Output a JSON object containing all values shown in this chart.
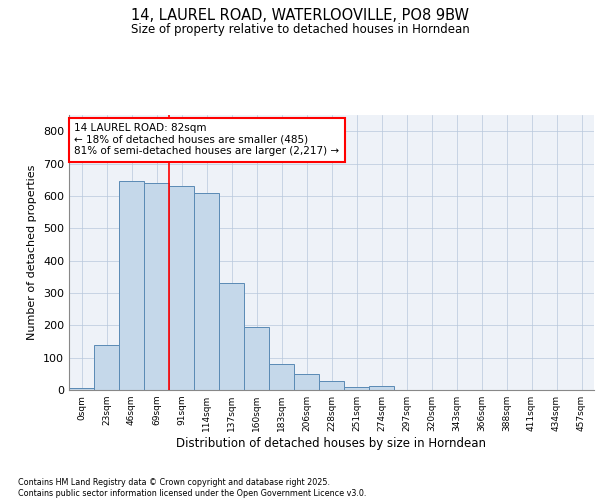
{
  "title": "14, LAUREL ROAD, WATERLOOVILLE, PO8 9BW",
  "subtitle": "Size of property relative to detached houses in Horndean",
  "xlabel": "Distribution of detached houses by size in Horndean",
  "ylabel": "Number of detached properties",
  "categories": [
    "0sqm",
    "23sqm",
    "46sqm",
    "69sqm",
    "91sqm",
    "114sqm",
    "137sqm",
    "160sqm",
    "183sqm",
    "206sqm",
    "228sqm",
    "251sqm",
    "274sqm",
    "297sqm",
    "320sqm",
    "343sqm",
    "366sqm",
    "388sqm",
    "411sqm",
    "434sqm",
    "457sqm"
  ],
  "bar_values": [
    5,
    140,
    645,
    640,
    630,
    610,
    330,
    195,
    80,
    48,
    28,
    10,
    12,
    0,
    0,
    0,
    0,
    0,
    0,
    0,
    0
  ],
  "vline_x": 3.5,
  "annotation_text": "14 LAUREL ROAD: 82sqm\n← 18% of detached houses are smaller (485)\n81% of semi-detached houses are larger (2,217) →",
  "bar_color": "#c5d8ea",
  "bar_edge_color": "#5a8ab5",
  "vline_color": "red",
  "background_color": "#eef2f8",
  "footer": "Contains HM Land Registry data © Crown copyright and database right 2025.\nContains public sector information licensed under the Open Government Licence v3.0.",
  "ylim": [
    0,
    850
  ],
  "yticks": [
    0,
    100,
    200,
    300,
    400,
    500,
    600,
    700,
    800
  ]
}
